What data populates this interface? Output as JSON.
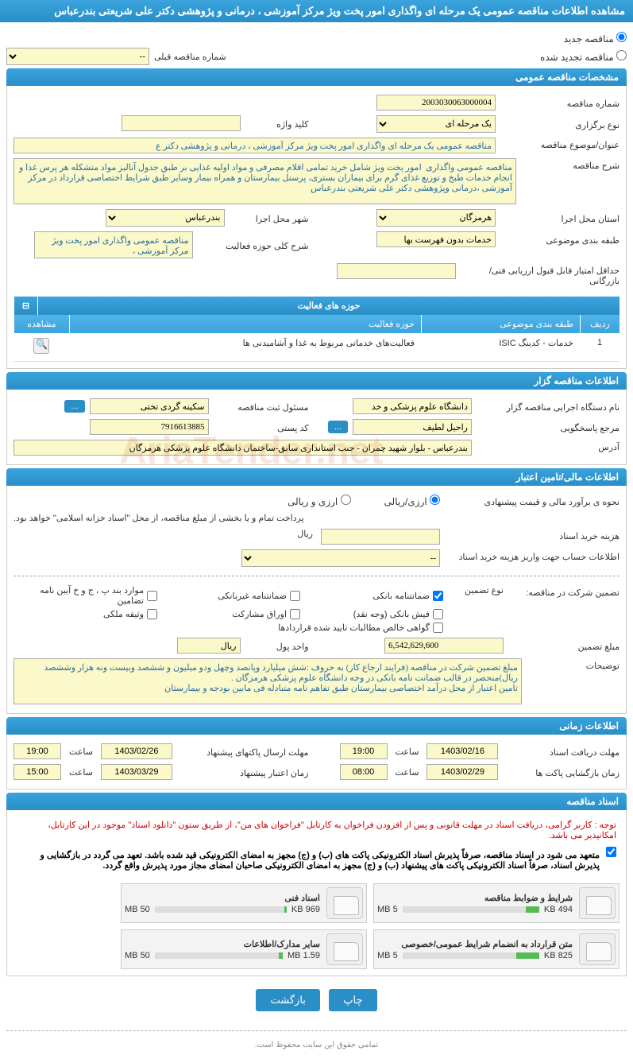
{
  "page_title": "مشاهده اطلاعات مناقصه عمومی یک مرحله ای واگذاری امور پخت ویژ مرکز آموزشی ، درمانی و پژوهشی دکتر علی شریعتی بندرعباس",
  "radios": {
    "new": "مناقصه جدید",
    "renewed": "مناقصه تجدید شده",
    "prev_label": "شماره مناقصه قبلی",
    "prev_value": "--"
  },
  "sections": {
    "general": "مشخصات مناقصه عمومی",
    "organizer": "اطلاعات مناقصه گزار",
    "financial": "اطلاعات مالی/تامین اعتبار",
    "timing": "اطلاعات زمانی",
    "documents": "اسناد مناقصه"
  },
  "general": {
    "number_label": "شماره مناقصه",
    "number": "2003030063000004",
    "type_label": "نوع برگزاری",
    "type": "یک مرحله ای",
    "keyword_label": "کلید واژه",
    "keyword": "",
    "title_label": "عنوان/موضوع مناقصه",
    "title": "مناقصه عمومی یک مرحله ای واگذاری امور پخت ویژ مرکز آموزشی ، درمانی و پژوهشی دکتر ع",
    "desc_label": "شرح مناقصه",
    "desc": "مناقصه عمومی واگذاری  امور پخت ویژ شامل خرید تمامی اقلام مصرفی و مواد اولیه غذایی بر طبق جدول آنالیز مواد متشکله هر پرس غذا و انجام خدمات طبخ و توزیع غذای گرم برای بیماران بستری، پرسنل بیمارستان و همراه بیمار وسایر طبق شرایط اختصاصی قرارداد در مرکز آموزشی ،درمانی وپژوهشی دکتر علی شریعتی بندرعباس",
    "province_label": "استان محل اجرا",
    "province": "هرمزگان",
    "city_label": "شهر محل اجرا",
    "city": "بندرعباس",
    "category_label": "طبقه بندی موضوعی",
    "category": "خدمات بدون فهرست بها",
    "field_label": "شرح کلی حوزه فعالیت",
    "field": "مناقصه عمومی واگذاری امور پخت ویژ مرکز آموزشی ،",
    "min_score_label": "حداقل امتیاز قابل قبول ارزیابی فنی/بازرگانی",
    "min_score": ""
  },
  "activity_table": {
    "header": "حوزه های فعالیت",
    "cols": {
      "idx": "ردیف",
      "cat": "طبقه بندی موضوعی",
      "act": "حوزه فعالیت",
      "view": "مشاهده"
    },
    "rows": [
      {
        "idx": "1",
        "cat": "خدمات - کدینگ ISIC",
        "act": "فعالیت‌های خدماتی مربوط به غذا و آشامیدنی ها"
      }
    ]
  },
  "organizer": {
    "exec_label": "نام دستگاه اجرایی مناقصه گزار",
    "exec": "دانشگاه علوم پزشکی و خد",
    "reg_officer_label": "مسئول ثبت مناقصه",
    "reg_officer": "سکینه گردی تختی",
    "more_btn": "...",
    "contact_label": "مرجع پاسخگویی",
    "contact": "راحیل لطیف",
    "postal_label": "کد پستی",
    "postal": "7916613885",
    "address_label": "آدرس",
    "address": "بندرعباس - بلوار شهید چمران - جنب استانداری سابق-ساختمان دانشگاه علوم پزشکی هرمزگان"
  },
  "financial": {
    "estimate_label": "نحوه ی برآورد مالی و قیمت پیشنهادی",
    "currency_type": "ارزی/ریالی",
    "currency_opt1": "ارزی/ریالی",
    "currency_opt2": "ارزی و ریالی",
    "payment_note": "پرداخت تمام و یا بخشی از مبلغ مناقصه، از محل \"اسناد خزانه اسلامی\" خواهد بود.",
    "doc_cost_label": "هزینه خرید اسناد",
    "doc_cost": "",
    "doc_cost_unit": "ریال",
    "account_label": "اطلاعات حساب جهت واریز هزینه خرید اسناد",
    "account": "--",
    "guarantee_type_label": "تضمین شرکت در مناقصه:",
    "guarantee_type_sub": "نوع تضمین",
    "guarantee_opts": {
      "bank": "ضمانتنامه بانکی",
      "nonbank": "ضمانتنامه غیربانکی",
      "regs": "موارد بند پ ، ج و خ آیین نامه تضامین",
      "cash": "فیش بانکی (وجه نقد)",
      "bonds": "اوراق مشارکت",
      "property": "وثیقه ملکی",
      "receivables": "گواهی خالص مطالبات تایید شده قراردادها"
    },
    "amount_label": "مبلغ تضمین",
    "amount": "6,542,629,600",
    "amount_unit_label": "واحد پول",
    "amount_unit": "ریال",
    "explain_label": "توضیحات",
    "explain": "مبلغ تضمین شرکت در مناقصه (فرایند ارجاع کار) به حروف :شش میلیارد وپانصد وچهل ودو میلیون و ششصد وبیست ونه هزار وششصد ریال)منحصر در قالب ضمانت نامه بانکی در وجه دانشگاه علوم پزشکی هرمزگان .\nتامین اعتبار از محل درآمد اختصاصی بیمارستان طبق تفاهم نامه متبادله فی مابین بودجه و بیمارستان"
  },
  "timing": {
    "receive_label": "مهلت دریافت اسناد",
    "receive_date": "1403/02/16",
    "receive_time": "19:00",
    "submit_label": "مهلت ارسال پاکتهای پیشنهاد",
    "submit_date": "1403/02/26",
    "submit_time": "19:00",
    "open_label": "زمان بازگشایی پاکت ها",
    "open_date": "1403/02/29",
    "open_time": "08:00",
    "validity_label": "زمان اعتبار پیشنهاد",
    "validity_date": "1403/03/29",
    "validity_time": "15:00",
    "time_label": "ساعت"
  },
  "documents": {
    "notice_red": "توجه : کاربر گرامی، دریافت اسناد در مهلت قانونی و پس از افزودن فراخوان به کارتابل \"فراخوان های من\"، از طریق ستون \"دانلود اسناد\" موجود در این کارتابل، امکانپذیر می باشد.",
    "notice_black": "متعهد می شود در اسناد مناقصه، صرفاً پذیرش اسناد الکترونیکی پاکت های (ب) و (ج) مجهز به امضای الکترونیکی قید شده باشد. تعهد می گردد در بازگشایی و پذیرش اسناد، صرفاً اسناد الکترونیکی پاکت های پیشنهاد (ب) و (ج) مجهز به امضای الکترونیکی صاحبان امضای مجاز مورد پذیرش واقع گردد.",
    "files": [
      {
        "name": "شرایط و ضوابط مناقصه",
        "size": "494 KB",
        "max": "5 MB",
        "pct": 10
      },
      {
        "name": "اسناد فنی",
        "size": "969 KB",
        "max": "50 MB",
        "pct": 2
      },
      {
        "name": "متن قرارداد به انضمام شرایط عمومی/خصوصی",
        "size": "825 KB",
        "max": "5 MB",
        "pct": 17
      },
      {
        "name": "سایر مدارک/اطلاعات",
        "size": "1.59 MB",
        "max": "50 MB",
        "pct": 3
      }
    ]
  },
  "footer": {
    "print": "چاپ",
    "back": "بازگشت",
    "copyright": "تمامی حقوق این سایت محفوظ است."
  },
  "watermark": "AriaTender.net"
}
